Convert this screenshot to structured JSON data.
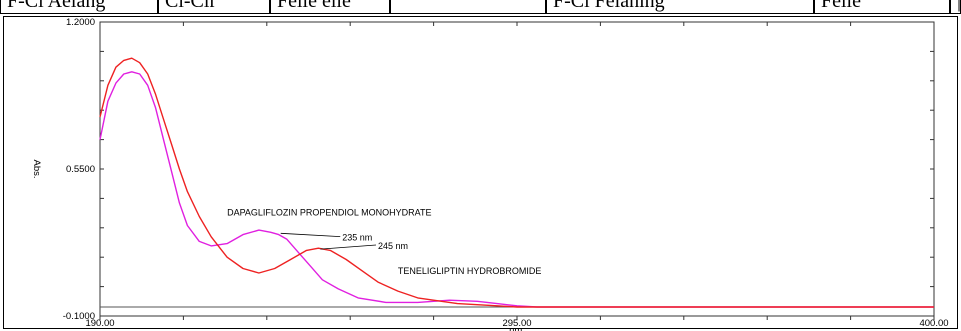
{
  "top_strip": {
    "cells": [
      "F-Cl Aelang",
      "Cl-Clr",
      "Felle elle",
      "",
      "F-Cl Felahing",
      "Felle",
      "|"
    ]
  },
  "chart_data": {
    "type": "line",
    "xlabel": "nm.",
    "ylabel": "Abs.",
    "xlim": [
      190.0,
      400.0
    ],
    "ylim": [
      -0.1,
      1.2
    ],
    "x_ticks": [
      "190.00",
      "295.00",
      "400.00"
    ],
    "y_ticks": [
      "1.2000",
      "0.5500",
      "-0.1000"
    ],
    "grid": false,
    "series": [
      {
        "name": "DAPAGLIFLOZIN PROPENDIOL MONOHYDRATE",
        "color": "#e020e0",
        "x": [
          190,
          192,
          194,
          196,
          198,
          200,
          202,
          204,
          206,
          208,
          210,
          212,
          215,
          218,
          222,
          226,
          230,
          233,
          235,
          237,
          240,
          243,
          246,
          250,
          255,
          262,
          270,
          278,
          285,
          290,
          295,
          300,
          320,
          350,
          380,
          400
        ],
        "y": [
          0.68,
          0.85,
          0.93,
          0.97,
          0.98,
          0.97,
          0.92,
          0.82,
          0.68,
          0.54,
          0.4,
          0.3,
          0.23,
          0.21,
          0.22,
          0.26,
          0.28,
          0.27,
          0.26,
          0.24,
          0.18,
          0.12,
          0.06,
          0.02,
          -0.02,
          -0.04,
          -0.04,
          -0.03,
          -0.035,
          -0.045,
          -0.055,
          -0.06,
          -0.06,
          -0.06,
          -0.06,
          -0.06
        ]
      },
      {
        "name": "TENELIGLIPTIN HYDROBROMIDE",
        "color": "#ee2222",
        "x": [
          190,
          192,
          194,
          196,
          198,
          200,
          202,
          204,
          206,
          208,
          210,
          212,
          215,
          218,
          222,
          226,
          230,
          234,
          238,
          242,
          245,
          248,
          252,
          256,
          260,
          265,
          270,
          280,
          290,
          295,
          300,
          320,
          350,
          380,
          400
        ],
        "y": [
          0.78,
          0.92,
          1.0,
          1.03,
          1.04,
          1.02,
          0.97,
          0.88,
          0.77,
          0.66,
          0.55,
          0.45,
          0.34,
          0.25,
          0.16,
          0.11,
          0.09,
          0.11,
          0.15,
          0.19,
          0.2,
          0.19,
          0.15,
          0.1,
          0.05,
          0.01,
          -0.02,
          -0.045,
          -0.055,
          -0.06,
          -0.06,
          -0.06,
          -0.06,
          -0.06,
          -0.06
        ]
      }
    ],
    "baseline": {
      "y": -0.06,
      "color": "#555555"
    },
    "annotations": [
      {
        "text": "DAPAGLIFLOZIN PROPENDIOL MONOHYDRATE",
        "x": 222,
        "y": 0.345
      },
      {
        "text": "235 nm",
        "peak_x": 235,
        "peak_y": 0.27,
        "label_x": 251,
        "label_y": 0.242
      },
      {
        "text": "245 nm",
        "peak_x": 245,
        "peak_y": 0.2,
        "label_x": 260,
        "label_y": 0.205
      },
      {
        "text": "TENELIGLIPTIN HYDROBROMIDE",
        "x": 265,
        "y": 0.085
      }
    ]
  }
}
